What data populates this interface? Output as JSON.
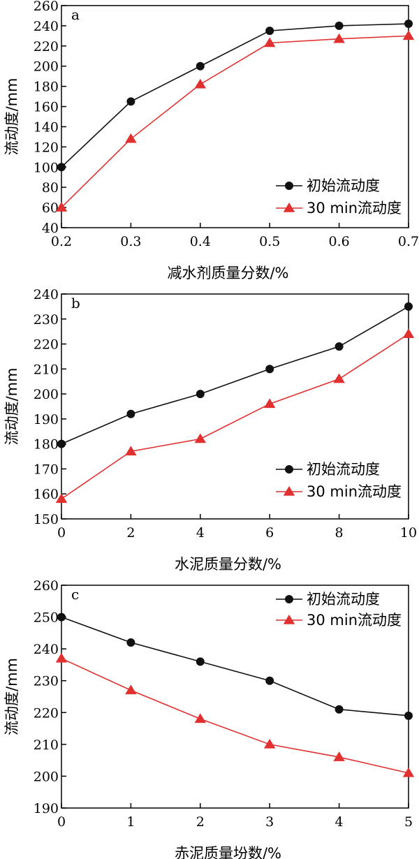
{
  "colors": {
    "series1": "#111111",
    "series2": "#e03030",
    "axis": "#000000"
  },
  "chart_data": [
    {
      "type": "line",
      "panel": "a",
      "xlabel": "减水剂质量分数/%",
      "ylabel": "流动度/mm",
      "xlim": [
        0.2,
        0.7
      ],
      "ylim": [
        40,
        260
      ],
      "xticks": [
        0.2,
        0.3,
        0.4,
        0.5,
        0.6,
        0.7
      ],
      "yticks": [
        40,
        60,
        80,
        100,
        120,
        140,
        160,
        180,
        200,
        220,
        240,
        260
      ],
      "legend_position": "lower-right",
      "grid": false,
      "series": [
        {
          "name": "初始流动度",
          "marker": "circle",
          "x": [
            0.2,
            0.3,
            0.4,
            0.5,
            0.6,
            0.7
          ],
          "y": [
            100,
            165,
            200,
            235,
            240,
            242
          ]
        },
        {
          "name": "30 min流动度",
          "marker": "triangle",
          "x": [
            0.2,
            0.3,
            0.4,
            0.5,
            0.6,
            0.7
          ],
          "y": [
            60,
            128,
            182,
            223,
            227,
            230
          ]
        }
      ]
    },
    {
      "type": "line",
      "panel": "b",
      "xlabel": "水泥质量分数/%",
      "ylabel": "流动度/mm",
      "xlim": [
        0,
        10
      ],
      "ylim": [
        150,
        240
      ],
      "xticks": [
        0,
        2,
        4,
        6,
        8,
        10
      ],
      "yticks": [
        150,
        160,
        170,
        180,
        190,
        200,
        210,
        220,
        230,
        240
      ],
      "legend_position": "lower-right",
      "grid": false,
      "series": [
        {
          "name": "初始流动度",
          "marker": "circle",
          "x": [
            0,
            2,
            4,
            6,
            8,
            10
          ],
          "y": [
            180,
            192,
            200,
            210,
            219,
            235
          ]
        },
        {
          "name": "30 min流动度",
          "marker": "triangle",
          "x": [
            0,
            2,
            4,
            6,
            8,
            10
          ],
          "y": [
            158,
            177,
            182,
            196,
            206,
            224
          ]
        }
      ]
    },
    {
      "type": "line",
      "panel": "c",
      "xlabel": "赤泥质量坋数/%",
      "ylabel": "流动度/mm",
      "xlim": [
        0,
        5
      ],
      "ylim": [
        190,
        260
      ],
      "xticks": [
        0,
        1,
        2,
        3,
        4,
        5
      ],
      "yticks": [
        190,
        200,
        210,
        220,
        230,
        240,
        250,
        260
      ],
      "legend_position": "top-right",
      "grid": false,
      "series": [
        {
          "name": "初始流动度",
          "marker": "circle",
          "x": [
            0,
            1,
            2,
            3,
            4,
            5
          ],
          "y": [
            250,
            242,
            236,
            230,
            221,
            219
          ]
        },
        {
          "name": "30 min流动度",
          "marker": "triangle",
          "x": [
            0,
            1,
            2,
            3,
            4,
            5
          ],
          "y": [
            237,
            227,
            218,
            210,
            206,
            201
          ]
        }
      ]
    }
  ]
}
